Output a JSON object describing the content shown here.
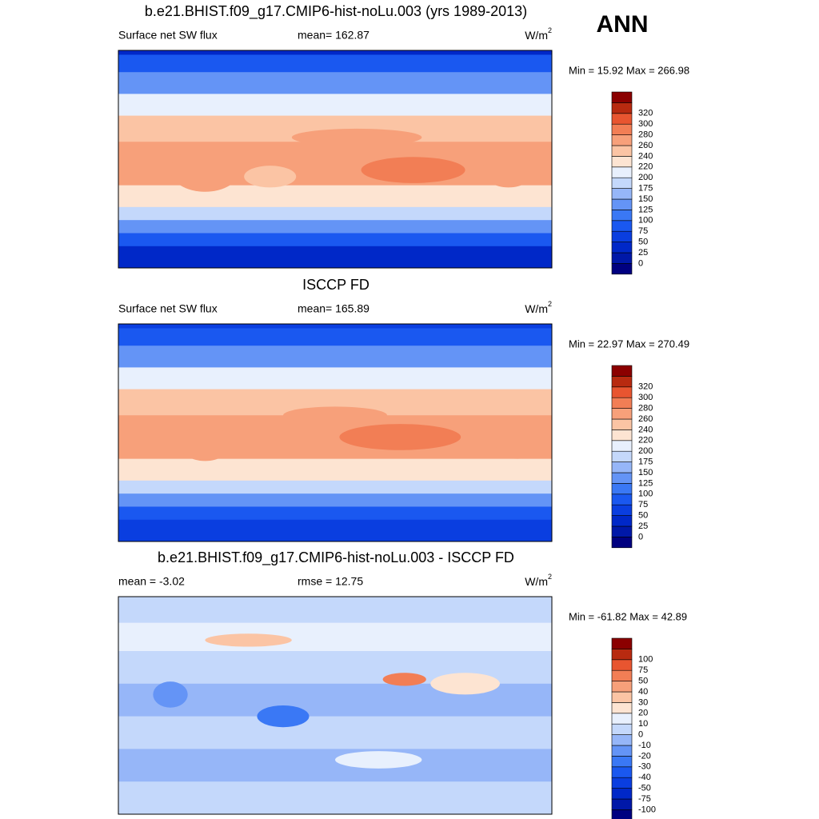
{
  "header": {
    "season": "ANN"
  },
  "panels": [
    {
      "title": "b.e21.BHIST.f09_g17.CMIP6-hist-noLu.003 (yrs 1989-2013)",
      "left": "Surface net SW flux",
      "center": "mean= 162.87",
      "units": "W/m",
      "units_sup": "2",
      "minmax": "Min =  15.92 Max = 266.98",
      "colorbar": {
        "levels": [
          0,
          25,
          50,
          75,
          100,
          125,
          150,
          175,
          200,
          220,
          240,
          260,
          280,
          300,
          320
        ],
        "colors": [
          "#000080",
          "#0018a8",
          "#0028c8",
          "#0a3ee0",
          "#1a58f0",
          "#3a78f5",
          "#6494f6",
          "#96b6f8",
          "#c4d8fb",
          "#e8f0fd",
          "#fde4d2",
          "#fbc4a4",
          "#f7a07a",
          "#f27e55",
          "#e85530",
          "#b82a10",
          "#8b0000"
        ]
      }
    },
    {
      "title": "ISCCP FD",
      "left": "Surface net SW flux",
      "center": "mean= 165.89",
      "units": "W/m",
      "units_sup": "2",
      "minmax": "Min =  22.97 Max = 270.49",
      "colorbar": {
        "levels": [
          0,
          25,
          50,
          75,
          100,
          125,
          150,
          175,
          200,
          220,
          240,
          260,
          280,
          300,
          320
        ],
        "colors": [
          "#000080",
          "#0018a8",
          "#0028c8",
          "#0a3ee0",
          "#1a58f0",
          "#3a78f5",
          "#6494f6",
          "#96b6f8",
          "#c4d8fb",
          "#e8f0fd",
          "#fde4d2",
          "#fbc4a4",
          "#f7a07a",
          "#f27e55",
          "#e85530",
          "#b82a10",
          "#8b0000"
        ]
      }
    },
    {
      "title": "b.e21.BHIST.f09_g17.CMIP6-hist-noLu.003 - ISCCP FD",
      "left": "mean =  -3.02",
      "center": "rmse =  12.75",
      "units": "W/m",
      "units_sup": "2",
      "minmax": "Min = -61.82 Max =  42.89",
      "colorbar": {
        "levels": [
          -100,
          -75,
          -50,
          -40,
          -30,
          -20,
          -10,
          0,
          10,
          20,
          30,
          40,
          50,
          75,
          100
        ],
        "colors": [
          "#000080",
          "#0018a8",
          "#0028c8",
          "#0a3ee0",
          "#1a58f0",
          "#3a78f5",
          "#6494f6",
          "#96b6f8",
          "#c4d8fb",
          "#e8f0fd",
          "#fde4d2",
          "#fbc4a4",
          "#f7a07a",
          "#f27e55",
          "#e85530",
          "#b82a10",
          "#8b0000"
        ]
      }
    }
  ]
}
